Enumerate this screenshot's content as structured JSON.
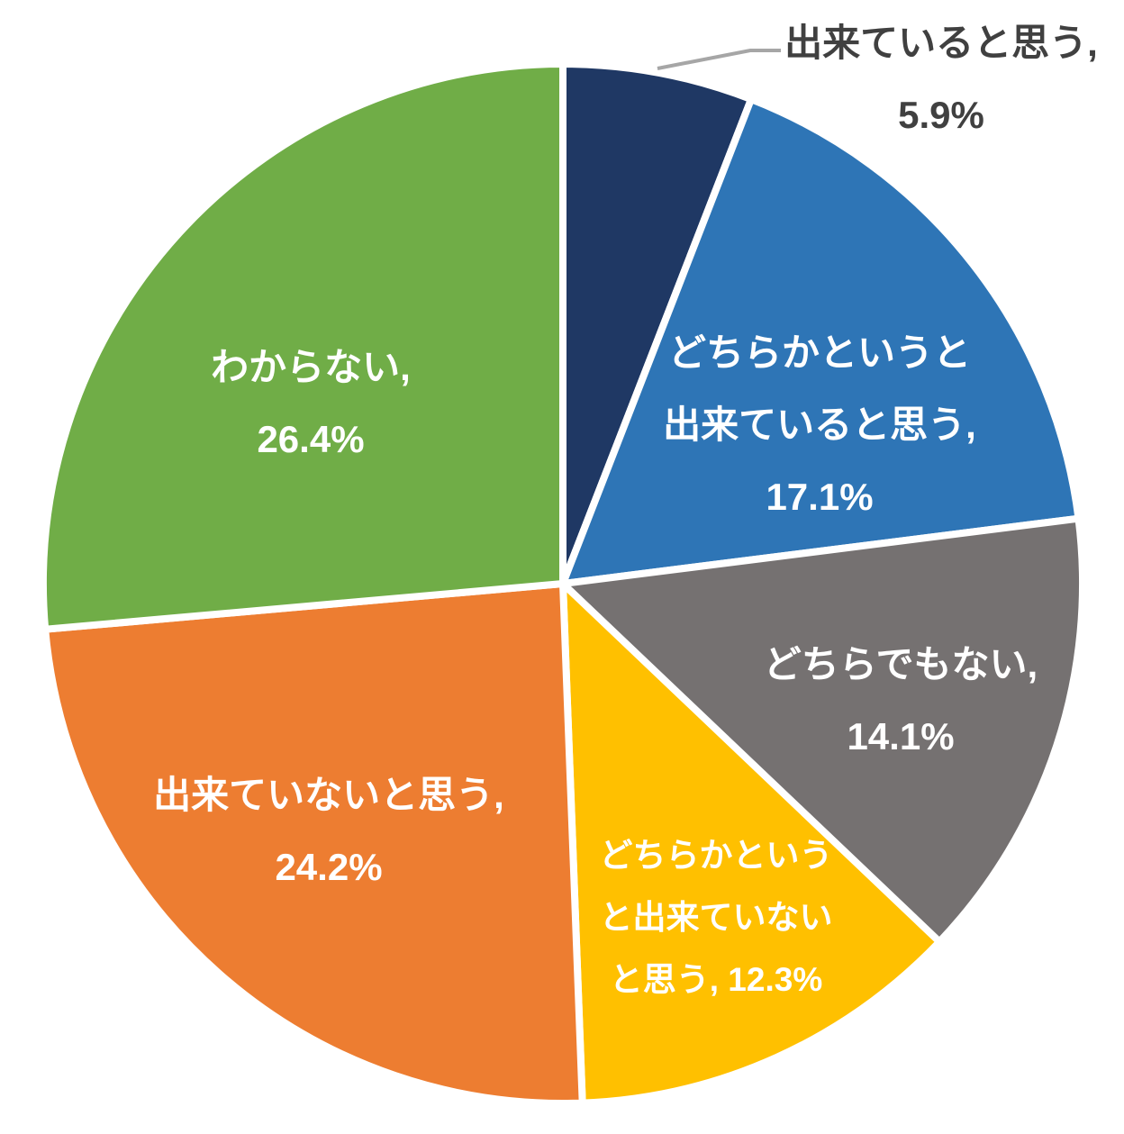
{
  "chart_data": {
    "type": "pie",
    "title": "",
    "unit": "%",
    "rotation": "clockwise-from-top",
    "legend": "none",
    "slices": [
      {
        "name": "出来ていると思う",
        "value": 5.9,
        "color": "#1F3864",
        "label_position": "outside",
        "label_lines": [
          "出来ていると思う,",
          "5.9%"
        ]
      },
      {
        "name": "どちらかというと出来ていると思う",
        "value": 17.1,
        "color": "#2E75B6",
        "label_position": "inside",
        "label_lines": [
          "どちらかというと",
          "出来ていると思う,",
          "17.1%"
        ]
      },
      {
        "name": "どちらでもない",
        "value": 14.1,
        "color": "#757171",
        "label_position": "inside",
        "label_lines": [
          "どちらでもない,",
          "14.1%"
        ]
      },
      {
        "name": "どちらかというと出来ていないと思う",
        "value": 12.3,
        "color": "#FFC000",
        "label_position": "inside",
        "label_lines": [
          "どちらかという",
          "と出来ていない",
          "と思う, 12.3%"
        ]
      },
      {
        "name": "出来ていないと思う",
        "value": 24.2,
        "color": "#ED7D31",
        "label_position": "inside",
        "label_lines": [
          "出来ていないと思う,",
          "24.2%"
        ]
      },
      {
        "name": "わからない",
        "value": 26.4,
        "color": "#70AD47",
        "label_position": "inside",
        "label_lines": [
          "わからない,",
          "26.4%"
        ]
      }
    ],
    "colors": {
      "slice_border": "#FFFFFF",
      "leader_line": "#A6A6A6",
      "outside_label_text": "#404040",
      "inside_label_text": "#FFFFFF",
      "background": "#FFFFFF"
    }
  }
}
